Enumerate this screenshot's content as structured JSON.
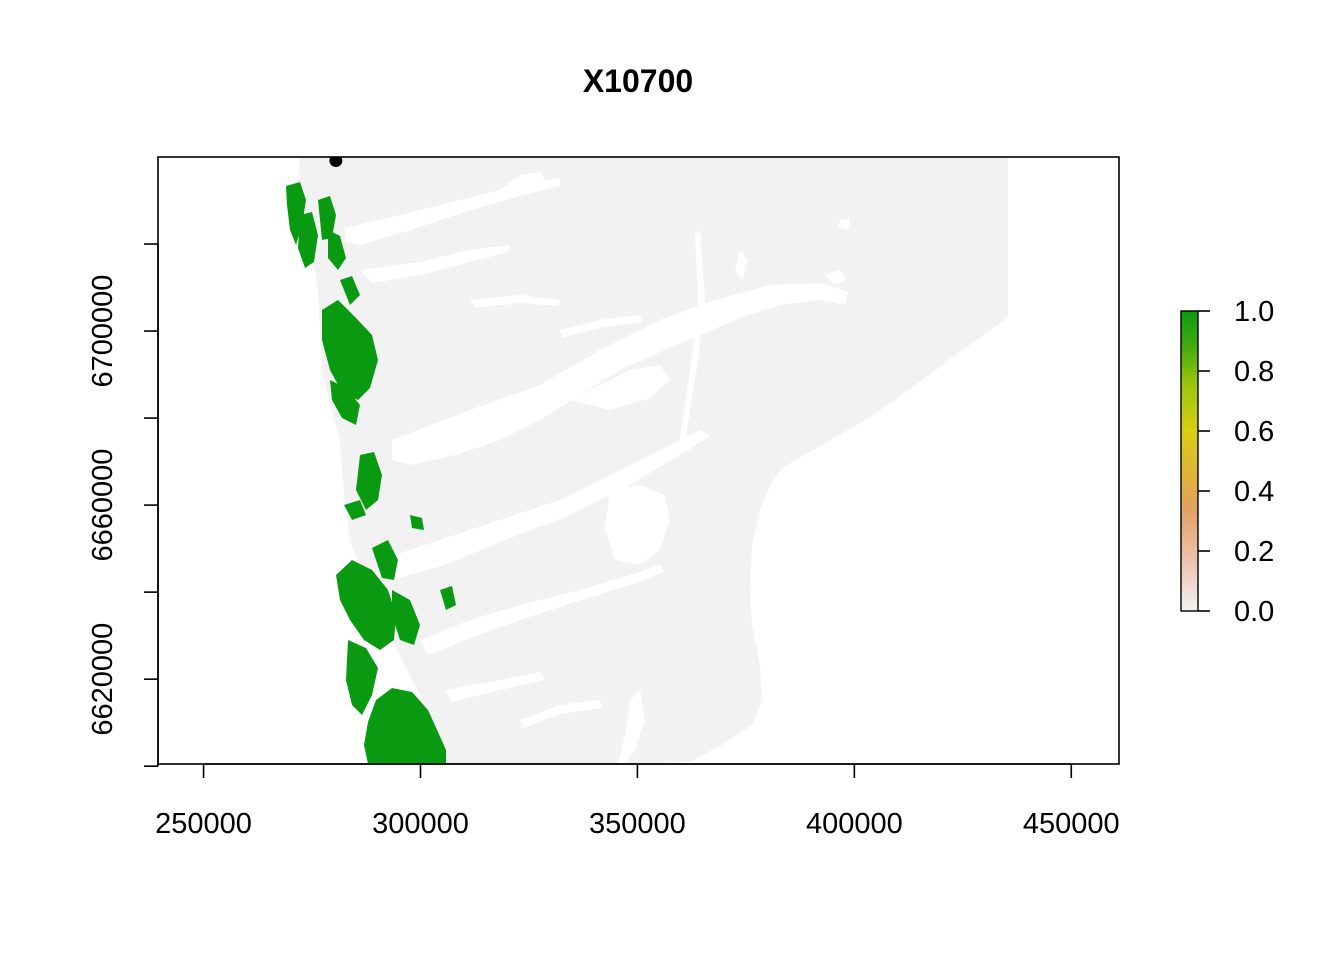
{
  "title": "X10700",
  "colors": {
    "land": "#f2f2f2",
    "presence": "#0a9a12",
    "point": "#000000",
    "scale": [
      "#f2f2f2",
      "#eec6b6",
      "#e2a060",
      "#e0b23a",
      "#d8cf12",
      "#9dc60c",
      "#45ab0e",
      "#0a9a12"
    ]
  },
  "axes": {
    "x": {
      "lim": [
        239500,
        461000
      ],
      "ticks": [
        250000,
        300000,
        350000,
        400000,
        450000
      ],
      "tick_labels": [
        "250000",
        "300000",
        "350000",
        "400000",
        "450000"
      ]
    },
    "y": {
      "lim": [
        6600500,
        6740000
      ],
      "minor_ticks": [
        6720000,
        6680000,
        6640000,
        6600000
      ],
      "ticks": [
        6700000,
        6660000,
        6620000
      ],
      "tick_labels": [
        "6700000",
        "6660000",
        "6620000"
      ]
    }
  },
  "legend": {
    "type": "colorbar",
    "range": [
      0,
      1
    ],
    "ticks": [
      0,
      0.2,
      0.4,
      0.6,
      0.8,
      1
    ],
    "tick_labels": [
      "0.0",
      "0.2",
      "0.4",
      "0.6",
      "0.8",
      "1.0"
    ],
    "placement": "right"
  },
  "point": {
    "x": 280500,
    "y": 6739200
  }
}
